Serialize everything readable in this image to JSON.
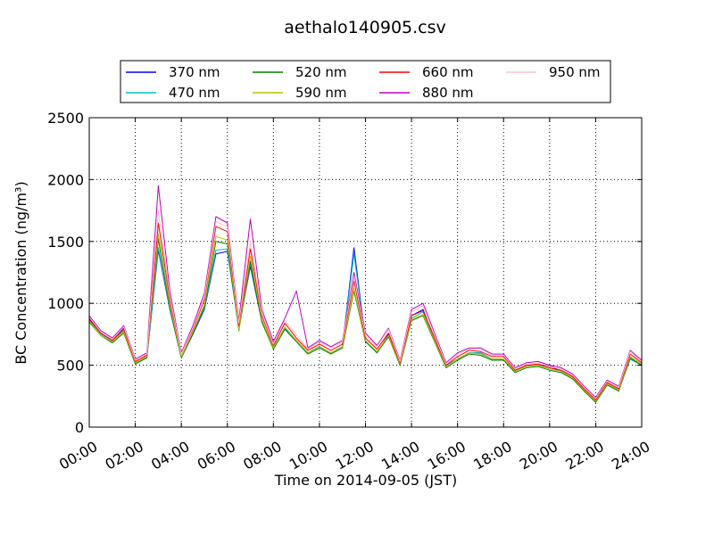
{
  "chart_data": {
    "type": "line",
    "title": "aethalo140905.csv",
    "xlabel": "Time on 2014-09-05 (JST)",
    "ylabel": "BC Concentration (ng/m³)",
    "xlim": [
      "00:00",
      "24:00"
    ],
    "ylim": [
      0,
      2500
    ],
    "x_ticks": [
      "00:00",
      "02:00",
      "04:00",
      "06:00",
      "08:00",
      "10:00",
      "12:00",
      "14:00",
      "16:00",
      "18:00",
      "20:00",
      "22:00",
      "24:00"
    ],
    "y_ticks": [
      0,
      500,
      1000,
      1500,
      2000,
      2500
    ],
    "grid": true,
    "legend_position": "top",
    "x": [
      "00:00",
      "00:30",
      "01:00",
      "01:30",
      "02:00",
      "02:30",
      "03:00",
      "03:30",
      "04:00",
      "04:30",
      "05:00",
      "05:30",
      "06:00",
      "06:30",
      "07:00",
      "07:30",
      "08:00",
      "08:30",
      "09:00",
      "09:30",
      "10:00",
      "10:30",
      "11:00",
      "11:30",
      "12:00",
      "12:30",
      "13:00",
      "13:30",
      "14:00",
      "14:30",
      "15:00",
      "15:30",
      "16:00",
      "16:30",
      "17:00",
      "17:30",
      "18:00",
      "18:30",
      "19:00",
      "19:30",
      "20:00",
      "20:30",
      "21:00",
      "21:30",
      "22:00",
      "22:30",
      "23:00",
      "23:30",
      "24:00"
    ],
    "series": [
      {
        "name": "370 nm",
        "color": "#0000ff",
        "values": [
          870,
          760,
          700,
          800,
          520,
          560,
          1430,
          950,
          560,
          750,
          950,
          1400,
          1420,
          800,
          1300,
          850,
          650,
          800,
          700,
          600,
          650,
          600,
          650,
          1450,
          700,
          600,
          750,
          500,
          900,
          950,
          700,
          500,
          550,
          600,
          600,
          550,
          550,
          450,
          500,
          500,
          500,
          450,
          400,
          300,
          200,
          350,
          300,
          550,
          500
        ]
      },
      {
        "name": "470 nm",
        "color": "#00bfbf",
        "values": [
          860,
          750,
          690,
          780,
          520,
          560,
          1450,
          960,
          560,
          760,
          960,
          1430,
          1440,
          800,
          1320,
          860,
          650,
          800,
          700,
          600,
          650,
          600,
          650,
          1400,
          700,
          600,
          740,
          500,
          880,
          930,
          700,
          500,
          550,
          600,
          600,
          550,
          550,
          450,
          500,
          500,
          480,
          450,
          400,
          300,
          200,
          350,
          300,
          550,
          500
        ]
      },
      {
        "name": "520 nm",
        "color": "#008000",
        "values": [
          850,
          740,
          680,
          760,
          510,
          560,
          1520,
          970,
          560,
          760,
          970,
          1500,
          1480,
          780,
          1340,
          850,
          630,
          790,
          690,
          590,
          640,
          590,
          640,
          1100,
          690,
          600,
          730,
          500,
          860,
          900,
          690,
          480,
          540,
          590,
          580,
          540,
          540,
          440,
          480,
          490,
          460,
          440,
          390,
          290,
          200,
          340,
          290,
          560,
          500
        ]
      },
      {
        "name": "590 nm",
        "color": "#bfbf00",
        "values": [
          860,
          740,
          690,
          770,
          520,
          570,
          1560,
          990,
          570,
          770,
          990,
          1540,
          1510,
          790,
          1380,
          870,
          640,
          810,
          700,
          600,
          650,
          600,
          650,
          1120,
          700,
          610,
          740,
          510,
          870,
          910,
          700,
          490,
          550,
          600,
          590,
          550,
          550,
          450,
          490,
          500,
          470,
          450,
          400,
          300,
          210,
          350,
          300,
          570,
          510
        ]
      },
      {
        "name": "660 nm",
        "color": "#ff0000",
        "values": [
          880,
          760,
          700,
          790,
          530,
          580,
          1650,
          1030,
          590,
          790,
          1030,
          1620,
          1580,
          820,
          1440,
          900,
          660,
          840,
          720,
          620,
          670,
          620,
          670,
          1180,
          720,
          630,
          760,
          520,
          900,
          940,
          720,
          500,
          570,
          620,
          610,
          570,
          570,
          460,
          500,
          510,
          480,
          460,
          410,
          310,
          220,
          360,
          310,
          590,
          520
        ]
      },
      {
        "name": "880 nm",
        "color": "#bf00bf",
        "values": [
          900,
          780,
          720,
          820,
          550,
          600,
          1950,
          1100,
          600,
          820,
          1080,
          1700,
          1650,
          860,
          1680,
          950,
          690,
          880,
          1100,
          640,
          700,
          650,
          700,
          1250,
          760,
          660,
          800,
          540,
          950,
          1000,
          760,
          520,
          600,
          640,
          640,
          590,
          590,
          480,
          520,
          530,
          500,
          480,
          430,
          330,
          240,
          380,
          330,
          620,
          540
        ]
      },
      {
        "name": "950 nm",
        "color": "#ffc0cb",
        "values": [
          890,
          770,
          710,
          810,
          540,
          590,
          1750,
          1060,
          590,
          800,
          1050,
          1660,
          1620,
          840,
          1500,
          920,
          670,
          860,
          750,
          630,
          690,
          640,
          690,
          1220,
          740,
          650,
          790,
          530,
          930,
          980,
          740,
          510,
          590,
          630,
          630,
          580,
          580,
          470,
          510,
          520,
          490,
          470,
          420,
          320,
          230,
          370,
          320,
          610,
          530
        ]
      }
    ]
  }
}
